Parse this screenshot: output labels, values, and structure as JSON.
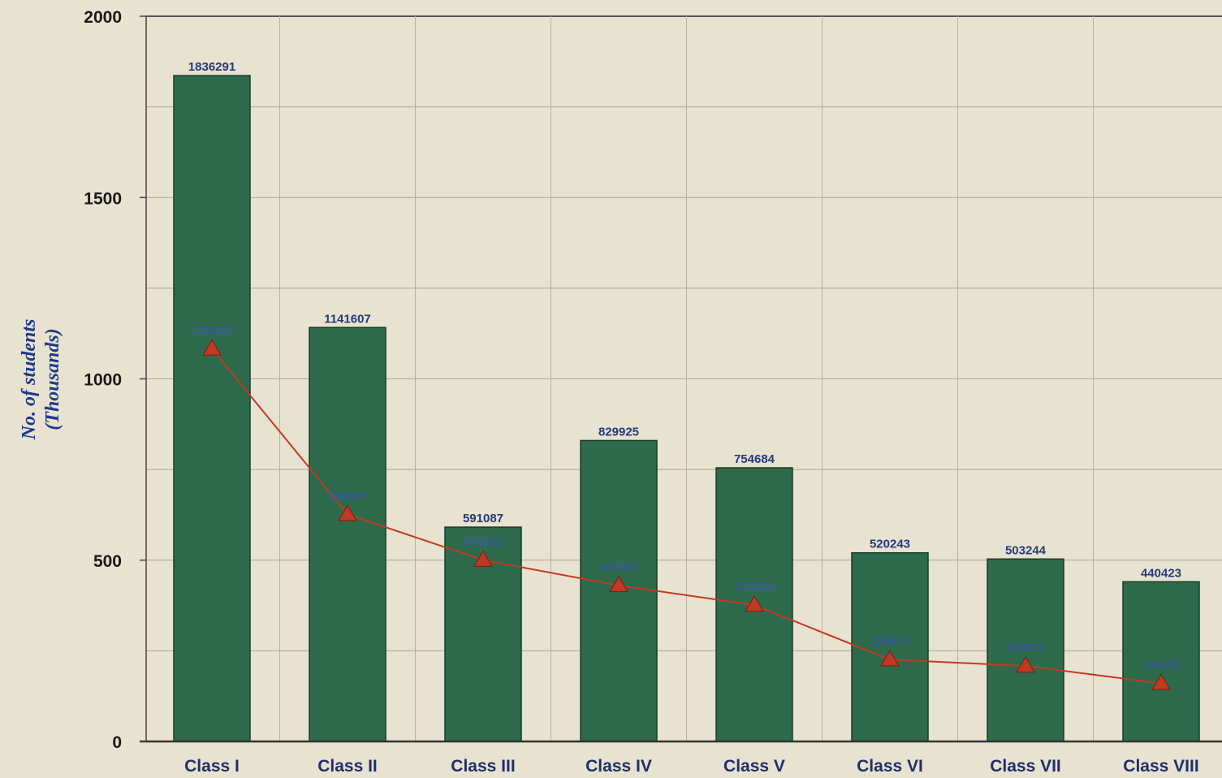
{
  "chart_data": {
    "type": "bar",
    "title": "",
    "xlabel": "",
    "ylabel": "No. of students",
    "ylabel_unit": "(Thousands)",
    "ylim": [
      0,
      2000
    ],
    "yticks": [
      "0",
      "500",
      "1000",
      "1500",
      "2000"
    ],
    "grid": true,
    "categories": [
      "Class I",
      "Class II",
      "Class III",
      "Class IV",
      "Class V",
      "Class VI",
      "Class VII",
      "Class VIII"
    ],
    "series": [
      {
        "type": "bar",
        "color": "#2e6b4c",
        "values": [
          1836.291,
          1141.607,
          591.087,
          829.925,
          754.684,
          520.243,
          503.244,
          440.423
        ],
        "labels": [
          "1836291",
          "1141607",
          "591087",
          "829925",
          "754684",
          "520243",
          "503244",
          "440423"
        ]
      },
      {
        "type": "line",
        "color": "#c03a22",
        "marker": "triangle",
        "values": [
          1082.841,
          626.45,
          500.152,
          430.367,
          376.259,
          225.815,
          208.372,
          160.235
        ],
        "labels": [
          "1082841",
          "626450",
          "500152",
          "430367",
          "376259",
          "225815",
          "208372",
          "160235"
        ]
      }
    ]
  }
}
